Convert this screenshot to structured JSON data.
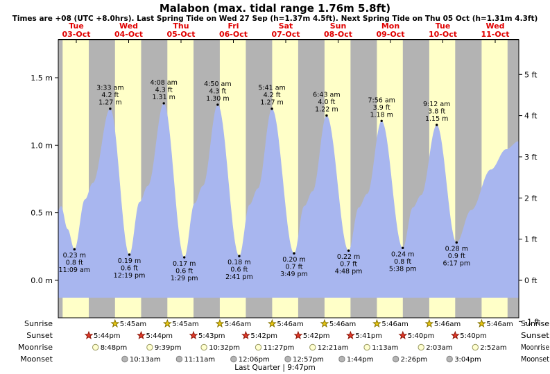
{
  "title": "Malabon (max. tidal range 1.76m 5.8ft)",
  "subtitle": "Times are +08 (UTC +8.0hrs). Last Spring Tide on Wed 27 Sep (h=1.37m 4.5ft). Next Spring Tide on Thu 05 Oct (h=1.31m 4.3ft)",
  "chart_data": {
    "type": "area",
    "y_axis_left": {
      "unit": "m",
      "labels": [
        "1.5 m",
        "1.0 m",
        "0.5 m",
        "0.0 m"
      ],
      "values": [
        1.5,
        1.0,
        0.5,
        0.0
      ]
    },
    "y_axis_right": {
      "unit": "ft",
      "labels": [
        "5 ft",
        "4 ft",
        "3 ft",
        "2 ft",
        "1 ft",
        "0 ft",
        "-1 ft"
      ],
      "values": [
        5,
        4,
        3,
        2,
        1,
        0,
        -1
      ]
    },
    "days": [
      {
        "dow": "Tue",
        "date": "03-Oct"
      },
      {
        "dow": "Wed",
        "date": "04-Oct"
      },
      {
        "dow": "Thu",
        "date": "05-Oct"
      },
      {
        "dow": "Fri",
        "date": "06-Oct"
      },
      {
        "dow": "Sat",
        "date": "07-Oct"
      },
      {
        "dow": "Sun",
        "date": "08-Oct"
      },
      {
        "dow": "Mon",
        "date": "09-Oct"
      },
      {
        "dow": "Tue",
        "date": "10-Oct"
      },
      {
        "dow": "Wed",
        "date": "11-Oct"
      }
    ],
    "tide_events": [
      {
        "type": "low",
        "t": 11.15,
        "height_m": 0.23,
        "lines": [
          "0.23 m",
          "0.8 ft",
          "11:09 am"
        ]
      },
      {
        "type": "high",
        "t": 27.55,
        "height_m": 1.27,
        "lines": [
          "3:33 am",
          "4.2 ft",
          "1.27 m"
        ]
      },
      {
        "type": "low",
        "t": 36.32,
        "height_m": 0.19,
        "lines": [
          "0.19 m",
          "0.6 ft",
          "12:19 pm"
        ]
      },
      {
        "type": "high",
        "t": 52.13,
        "height_m": 1.31,
        "lines": [
          "4:08 am",
          "4.3 ft",
          "1.31 m"
        ]
      },
      {
        "type": "low",
        "t": 61.48,
        "height_m": 0.17,
        "lines": [
          "0.17 m",
          "0.6 ft",
          "1:29 pm"
        ]
      },
      {
        "type": "high",
        "t": 76.83,
        "height_m": 1.3,
        "lines": [
          "4:50 am",
          "4.3 ft",
          "1.30 m"
        ]
      },
      {
        "type": "low",
        "t": 86.68,
        "height_m": 0.18,
        "lines": [
          "0.18 m",
          "0.6 ft",
          "2:41 pm"
        ]
      },
      {
        "type": "high",
        "t": 101.68,
        "height_m": 1.27,
        "lines": [
          "5:41 am",
          "4.2 ft",
          "1.27 m"
        ]
      },
      {
        "type": "low",
        "t": 111.82,
        "height_m": 0.2,
        "lines": [
          "0.20 m",
          "0.7 ft",
          "3:49 pm"
        ]
      },
      {
        "type": "high",
        "t": 126.72,
        "height_m": 1.22,
        "lines": [
          "6:43 am",
          "4.0 ft",
          "1.22 m"
        ]
      },
      {
        "type": "low",
        "t": 136.8,
        "height_m": 0.22,
        "lines": [
          "0.22 m",
          "0.7 ft",
          "4:48 pm"
        ]
      },
      {
        "type": "high",
        "t": 151.93,
        "height_m": 1.18,
        "lines": [
          "7:56 am",
          "3.9 ft",
          "1.18 m"
        ]
      },
      {
        "type": "low",
        "t": 161.63,
        "height_m": 0.24,
        "lines": [
          "0.24 m",
          "0.8 ft",
          "5:38 pm"
        ]
      },
      {
        "type": "high",
        "t": 177.2,
        "height_m": 1.15,
        "lines": [
          "9:12 am",
          "3.8 ft",
          "1.15 m"
        ]
      },
      {
        "type": "low",
        "t": 186.28,
        "height_m": 0.28,
        "lines": [
          "0.28 m",
          "0.9 ft",
          "6:17 pm"
        ]
      }
    ],
    "curve_points": [
      [
        3.74,
        0.52
      ],
      [
        5.0,
        0.55
      ],
      [
        8.0,
        0.38
      ],
      [
        11.15,
        0.23
      ],
      [
        16.0,
        0.6
      ],
      [
        19.5,
        0.72
      ],
      [
        27.55,
        1.27
      ],
      [
        36.32,
        0.19
      ],
      [
        41.0,
        0.58
      ],
      [
        44.8,
        0.7
      ],
      [
        52.13,
        1.31
      ],
      [
        61.48,
        0.17
      ],
      [
        66.2,
        0.57
      ],
      [
        70.0,
        0.7
      ],
      [
        76.83,
        1.3
      ],
      [
        86.68,
        0.18
      ],
      [
        91.4,
        0.56
      ],
      [
        95.2,
        0.68
      ],
      [
        101.68,
        1.27
      ],
      [
        111.82,
        0.2
      ],
      [
        116.5,
        0.55
      ],
      [
        120.3,
        0.66
      ],
      [
        126.72,
        1.22
      ],
      [
        136.8,
        0.22
      ],
      [
        141.5,
        0.54
      ],
      [
        145.3,
        0.64
      ],
      [
        151.93,
        1.18
      ],
      [
        161.63,
        0.24
      ],
      [
        166.3,
        0.54
      ],
      [
        170.0,
        0.63
      ],
      [
        177.2,
        1.15
      ],
      [
        186.28,
        0.28
      ],
      [
        193.0,
        0.52
      ],
      [
        202.0,
        0.82
      ],
      [
        209.0,
        0.97
      ],
      [
        214.8,
        1.03
      ]
    ],
    "night_spans": [
      [
        3.74,
        5.75
      ],
      [
        17.73,
        29.75
      ],
      [
        41.73,
        53.75
      ],
      [
        65.72,
        77.77
      ],
      [
        89.7,
        101.77
      ],
      [
        113.7,
        125.77
      ],
      [
        137.68,
        149.77
      ],
      [
        161.67,
        173.77
      ],
      [
        185.67,
        197.77
      ],
      [
        209.67,
        214.8
      ]
    ],
    "colors": {
      "day_band": "#ffffc8",
      "night_band": "#b3b3b3",
      "tide_fill": "#a8b6ef",
      "date_red": "#e00000",
      "sunrise_star": "#e7c512",
      "sunrise_star_stroke": "#857300",
      "sunset_star": "#e03a2a",
      "sunset_star_stroke": "#8c1507",
      "moonrise_fill": "#ffffd0",
      "moonrise_stroke": "#98985f",
      "moonset_fill": "#b5b5b5",
      "moonset_stroke": "#808080",
      "axis": "#000000"
    }
  },
  "almanac": {
    "rows": [
      {
        "key": "sunrise",
        "label": "Sunrise",
        "events": [
          {
            "t": 29.75,
            "time": "5:45am"
          },
          {
            "t": 53.75,
            "time": "5:45am"
          },
          {
            "t": 77.77,
            "time": "5:46am"
          },
          {
            "t": 101.77,
            "time": "5:46am"
          },
          {
            "t": 125.77,
            "time": "5:46am"
          },
          {
            "t": 149.77,
            "time": "5:46am"
          },
          {
            "t": 173.77,
            "time": "5:46am"
          },
          {
            "t": 197.77,
            "time": "5:46am"
          }
        ]
      },
      {
        "key": "sunset",
        "label": "Sunset",
        "events": [
          {
            "t": 17.73,
            "time": "5:44pm"
          },
          {
            "t": 41.73,
            "time": "5:44pm"
          },
          {
            "t": 65.72,
            "time": "5:43pm"
          },
          {
            "t": 89.7,
            "time": "5:42pm"
          },
          {
            "t": 113.7,
            "time": "5:42pm"
          },
          {
            "t": 137.68,
            "time": "5:41pm"
          },
          {
            "t": 161.67,
            "time": "5:40pm"
          },
          {
            "t": 185.67,
            "time": "5:40pm"
          }
        ]
      },
      {
        "key": "moonrise",
        "label": "Moonrise",
        "events": [
          {
            "t": 20.8,
            "time": "8:48pm"
          },
          {
            "t": 45.65,
            "time": "9:39pm"
          },
          {
            "t": 70.53,
            "time": "10:32pm"
          },
          {
            "t": 95.45,
            "time": "11:27pm"
          },
          {
            "t": 120.35,
            "time": "12:21am"
          },
          {
            "t": 145.22,
            "time": "1:13am"
          },
          {
            "t": 170.05,
            "time": "2:03am"
          },
          {
            "t": 194.87,
            "time": "2:52am"
          }
        ]
      },
      {
        "key": "moonset",
        "label": "Moonset",
        "events": [
          {
            "t": 34.22,
            "time": "10:13am"
          },
          {
            "t": 59.18,
            "time": "11:11am"
          },
          {
            "t": 84.1,
            "time": "12:06pm"
          },
          {
            "t": 108.95,
            "time": "12:57pm"
          },
          {
            "t": 133.73,
            "time": "1:44pm"
          },
          {
            "t": 158.43,
            "time": "2:26pm"
          },
          {
            "t": 183.07,
            "time": "3:04pm"
          }
        ]
      }
    ],
    "footer": "Last Quarter | 9:47pm"
  }
}
